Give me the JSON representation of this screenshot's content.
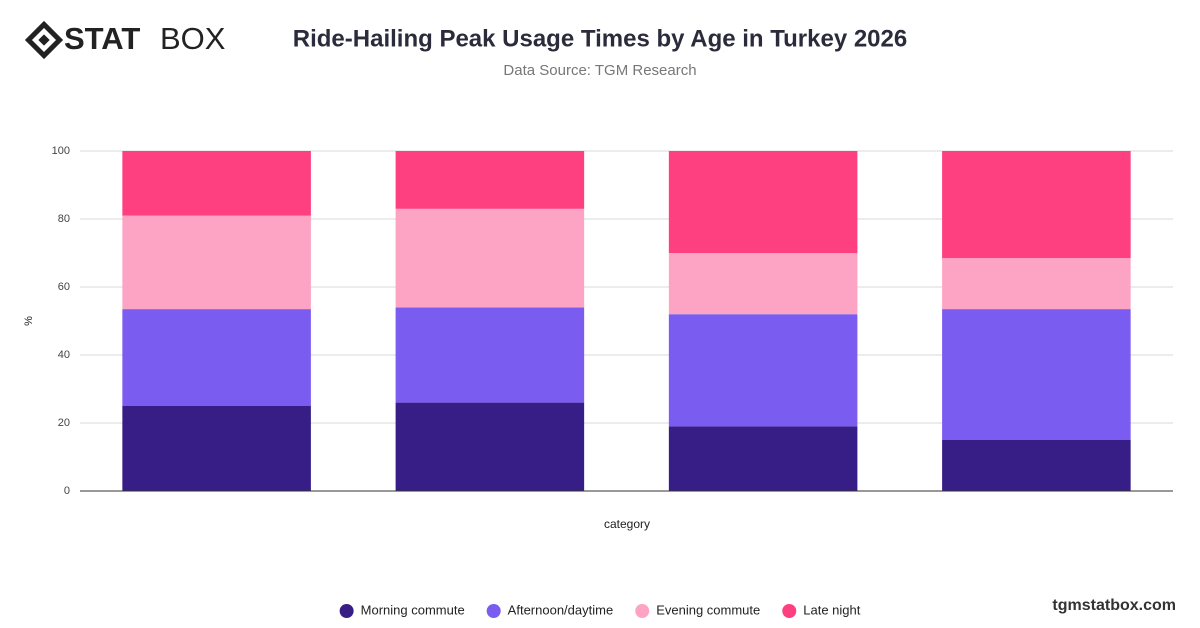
{
  "brand": {
    "logo_bold": "STAT",
    "logo_light": "BOX",
    "site": "tgmstatbox.com"
  },
  "chart_data": {
    "type": "stacked_bar",
    "title": "Ride-Hailing Peak Usage Times by Age in Turkey 2026",
    "subtitle": "Data Source: TGM Research",
    "x_label": "category",
    "y_label": "%",
    "categories": [
      null,
      null,
      null,
      null
    ],
    "series": [
      {
        "name": "Morning commute",
        "color": "#371e86",
        "values": [
          25,
          26,
          19,
          15
        ]
      },
      {
        "name": "Afternoon/daytime",
        "color": "#7b5cf0",
        "values": [
          28.5,
          28,
          33,
          38.5
        ]
      },
      {
        "name": "Evening commute",
        "color": "#fda4c4",
        "values": [
          27.5,
          29,
          18,
          15
        ]
      },
      {
        "name": "Late night",
        "color": "#fe3f80",
        "values": [
          19,
          17,
          30,
          31.5
        ]
      }
    ],
    "ylim": [
      0,
      100
    ],
    "yticks": [
      0,
      20,
      40,
      60,
      80,
      100
    ],
    "grid": true,
    "legend": "bottom"
  }
}
